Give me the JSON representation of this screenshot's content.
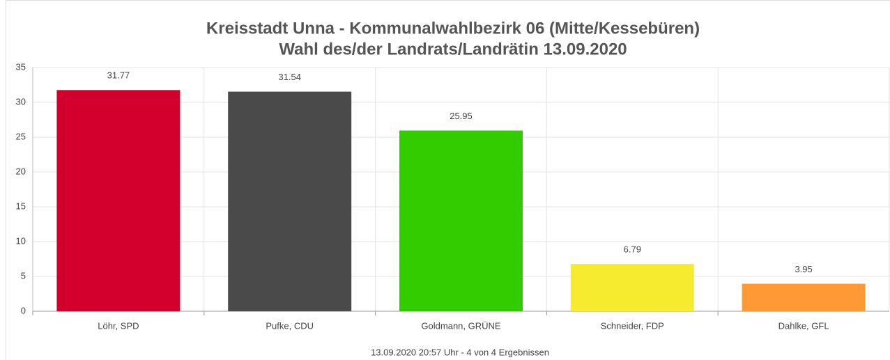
{
  "chart_data": {
    "type": "bar",
    "title": "Kreisstadt Unna - Kommunalwahlbezirk 06 (Mitte/Kessebüren)",
    "subtitle": "Wahl des/der Landrats/Landrätin 13.09.2020",
    "footnote": "13.09.2020 20:57 Uhr - 4 von 4 Ergebnissen",
    "categories": [
      "Löhr, SPD",
      "Pufke, CDU",
      "Goldmann, GRÜNE",
      "Schneider, FDP",
      "Dahlke, GFL"
    ],
    "values": [
      31.77,
      31.54,
      25.95,
      6.79,
      3.95
    ],
    "colors": [
      "#d2002a",
      "#4a4a4a",
      "#33cc00",
      "#f7eb30",
      "#ff9933"
    ],
    "ylim": [
      0,
      35
    ],
    "yticks": [
      0,
      5,
      10,
      15,
      20,
      25,
      30,
      35
    ],
    "grid": true
  }
}
